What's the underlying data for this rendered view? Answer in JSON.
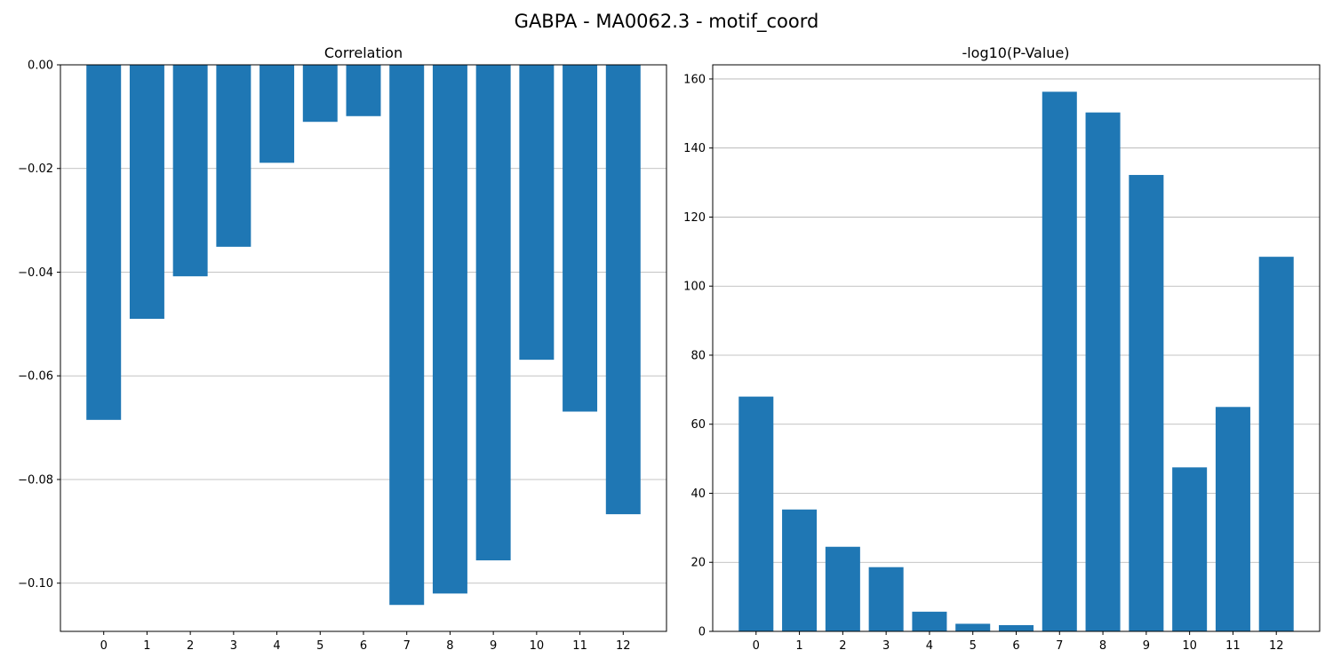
{
  "figure_title": "GABPA - MA0062.3 - motif_coord",
  "colors": {
    "bar": "#1f77b4",
    "grid": "#b0b0b0",
    "axis": "#000000"
  },
  "chart_data": [
    {
      "type": "bar",
      "title": "Correlation",
      "xlabel": "",
      "ylabel": "",
      "categories": [
        "0",
        "1",
        "2",
        "3",
        "4",
        "5",
        "6",
        "7",
        "8",
        "9",
        "10",
        "11",
        "12"
      ],
      "values": [
        -0.0685,
        -0.049,
        -0.0408,
        -0.0351,
        -0.0189,
        -0.011,
        -0.0099,
        -0.1042,
        -0.102,
        -0.0956,
        -0.0569,
        -0.0669,
        -0.0867
      ],
      "ylim": [
        -0.1093,
        0.0
      ],
      "yticks": [
        0.0,
        -0.02,
        -0.04,
        -0.06,
        -0.08,
        -0.1
      ],
      "ytick_labels": [
        "0.00",
        "−0.02",
        "−0.04",
        "−0.06",
        "−0.08",
        "−0.10"
      ],
      "grid": "y"
    },
    {
      "type": "bar",
      "title": "-log10(P-Value)",
      "xlabel": "",
      "ylabel": "",
      "categories": [
        "0",
        "1",
        "2",
        "3",
        "4",
        "5",
        "6",
        "7",
        "8",
        "9",
        "10",
        "11",
        "12"
      ],
      "values": [
        68.0,
        35.3,
        24.5,
        18.6,
        5.7,
        2.2,
        1.8,
        156.3,
        150.3,
        132.2,
        47.5,
        65.0,
        108.5
      ],
      "ylim": [
        0,
        164.1
      ],
      "yticks": [
        0,
        20,
        40,
        60,
        80,
        100,
        120,
        140,
        160
      ],
      "ytick_labels": [
        "0",
        "20",
        "40",
        "60",
        "80",
        "100",
        "120",
        "140",
        "160"
      ],
      "grid": "y"
    }
  ]
}
